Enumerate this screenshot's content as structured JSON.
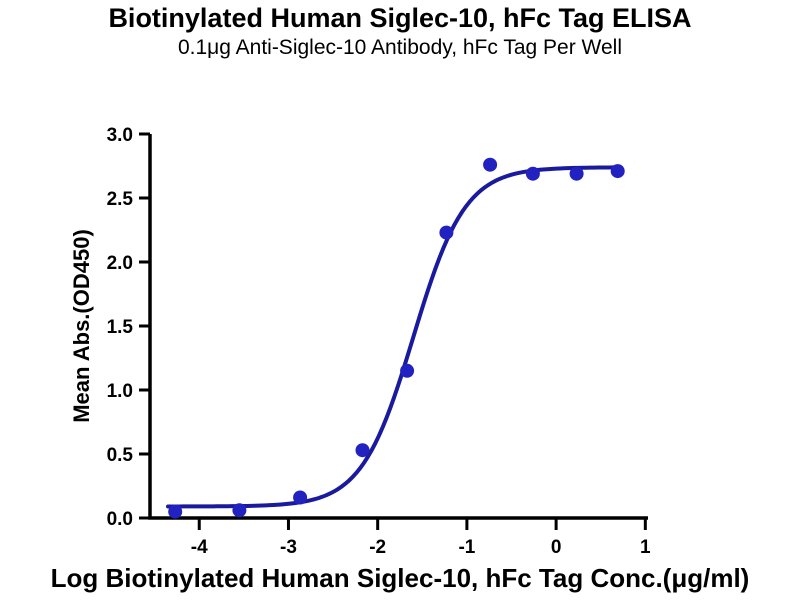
{
  "header": {
    "title": "Biotinylated Human Siglec-10, hFc Tag ELISA",
    "subtitle": "0.1μg Anti-Siglec-10 Antibody, hFc Tag Per Well"
  },
  "chart_data": {
    "type": "scatter",
    "fit": "4PL sigmoidal dose-response",
    "title": "Biotinylated Human Siglec-10, hFc Tag ELISA",
    "subtitle": "0.1μg Anti-Siglec-10 Antibody, hFc Tag Per Well",
    "xlabel": "Log Biotinylated Human Siglec-10, hFc Tag Conc.(μg/ml)",
    "ylabel": "Mean Abs.(OD450)",
    "xlim": [
      -4.552,
      1.03
    ],
    "ylim": [
      0,
      3.0
    ],
    "grid": false,
    "legend": false,
    "x_ticks": {
      "values": [
        -4,
        -3,
        -2,
        -1,
        0,
        1
      ],
      "labels": [
        "-4",
        "-3",
        "-2",
        "-1",
        "0",
        "1"
      ]
    },
    "y_ticks": {
      "values": [
        0,
        0.5,
        1.0,
        1.5,
        2.0,
        2.5,
        3.0
      ],
      "labels": [
        "0.0",
        "0.5",
        "1.0",
        "1.5",
        "2.0",
        "2.5",
        "3.0"
      ]
    },
    "points": [
      {
        "log_conc": -4.27,
        "od450": 0.05
      },
      {
        "log_conc": -3.55,
        "od450": 0.06
      },
      {
        "log_conc": -2.87,
        "od450": 0.16
      },
      {
        "log_conc": -2.17,
        "od450": 0.53
      },
      {
        "log_conc": -1.67,
        "od450": 1.15
      },
      {
        "log_conc": -1.23,
        "od450": 2.23
      },
      {
        "log_conc": -0.74,
        "od450": 2.76
      },
      {
        "log_conc": -0.26,
        "od450": 2.69
      },
      {
        "log_conc": 0.23,
        "od450": 2.69
      },
      {
        "log_conc": 0.69,
        "od450": 2.71
      }
    ],
    "curve": {
      "bottom": 0.09,
      "top": 2.74,
      "log_ec50": -1.6,
      "hill_slope": 1.5,
      "x_start": -4.35,
      "x_end": 0.72
    },
    "colors": {
      "curve": "#1a1a9e",
      "points": "#2222c0",
      "axis": "#000000",
      "text": "#000000"
    }
  }
}
